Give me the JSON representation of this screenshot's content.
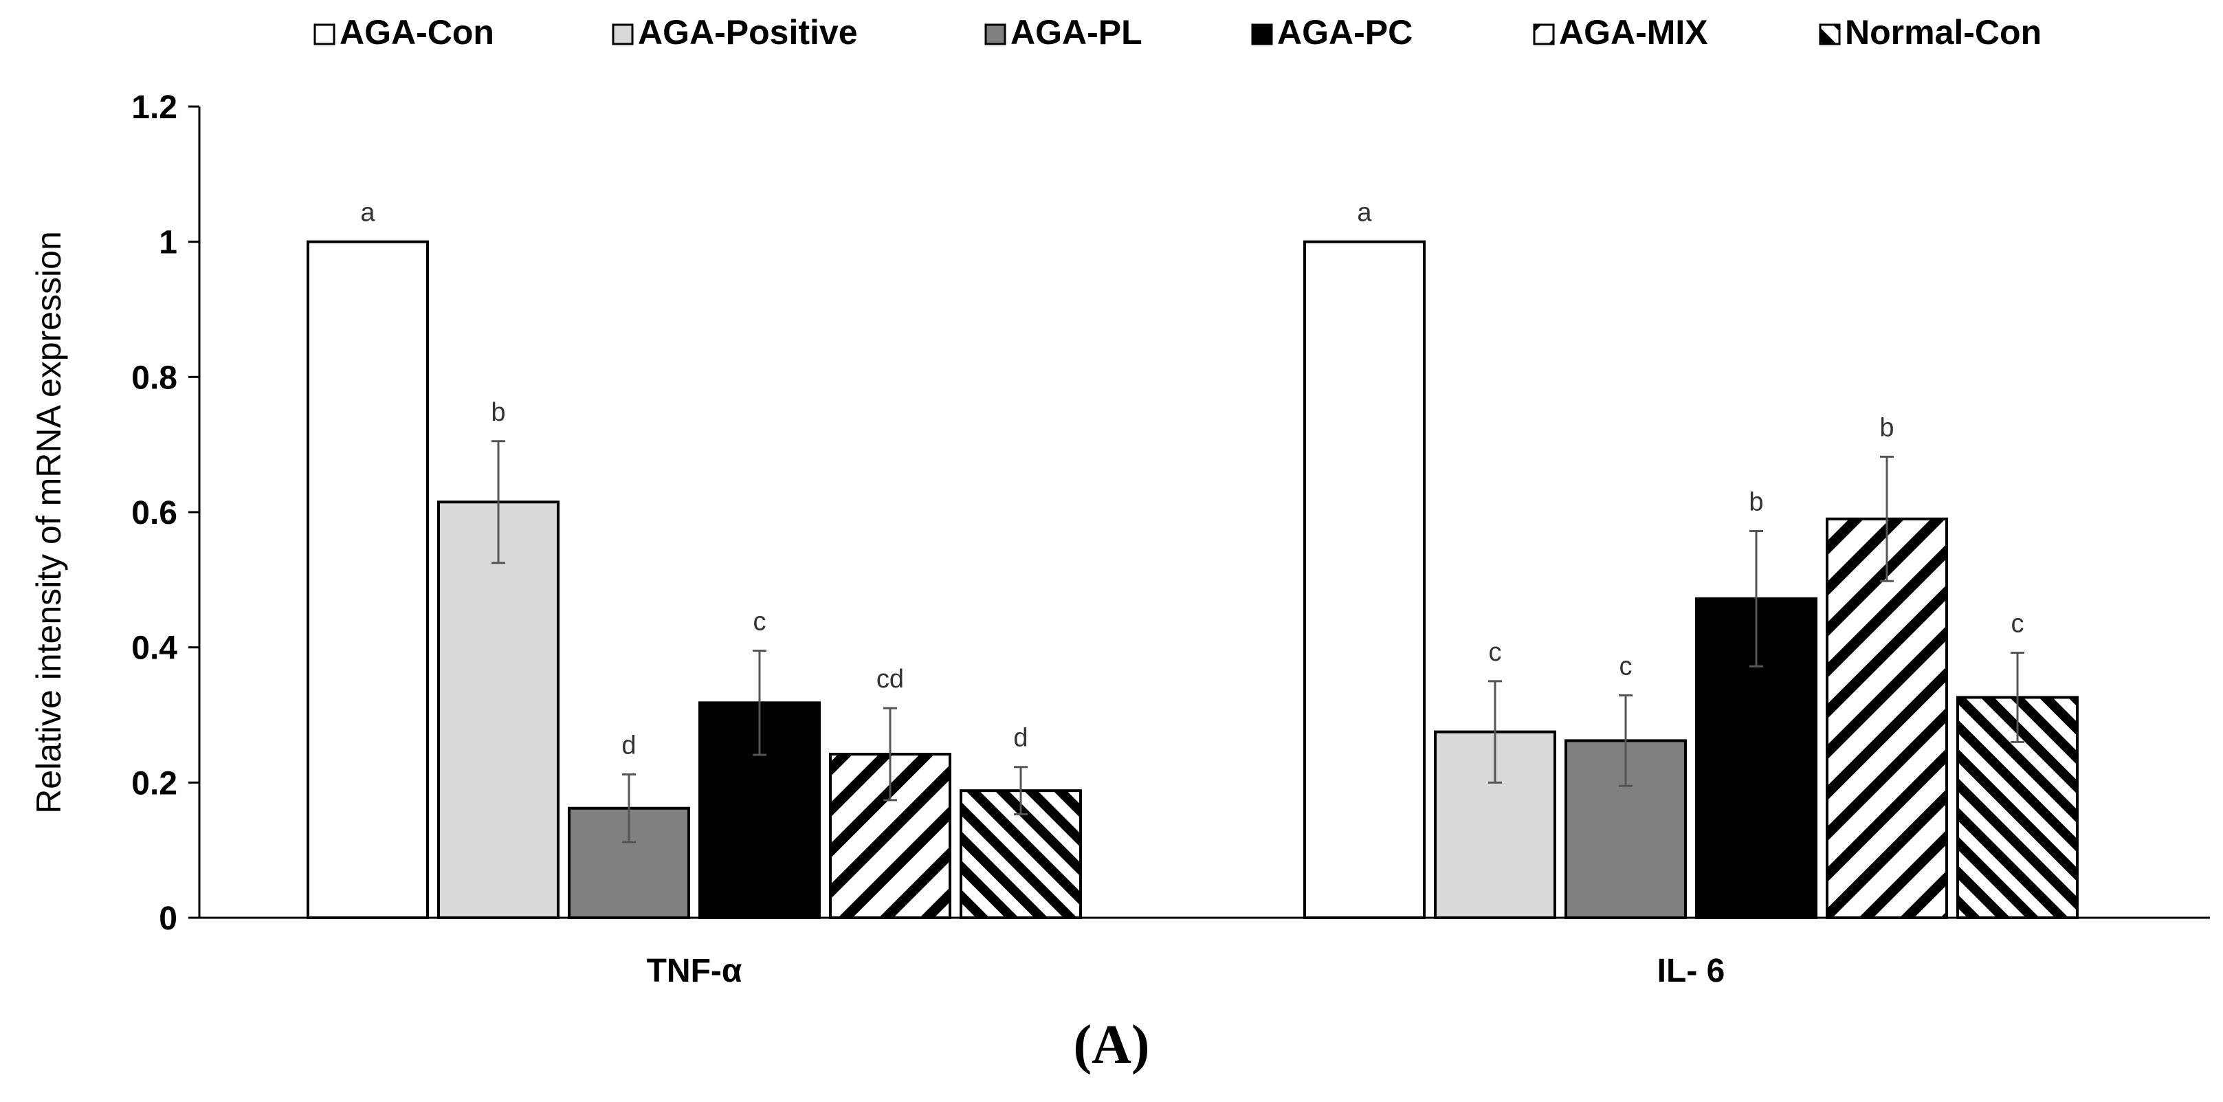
{
  "chart_data": {
    "type": "bar",
    "title": "",
    "xlabel": "",
    "ylabel": "Relative intensity of mRNA expression",
    "ylim": [
      0,
      1.2
    ],
    "yticks": [
      "0",
      "0.2",
      "0.4",
      "0.6",
      "0.8",
      "1",
      "1.2"
    ],
    "grid": false,
    "legend_position": "top",
    "categories": [
      "TNF-α",
      "IL- 6"
    ],
    "series": [
      {
        "name": "AGA-Con",
        "pattern": "white",
        "values": [
          1.0,
          1.0
        ],
        "errors": [
          0.0,
          0.0
        ],
        "sig_labels": [
          "a",
          "a"
        ]
      },
      {
        "name": "AGA-Positive",
        "pattern": "light-gray",
        "values": [
          0.615,
          0.275
        ],
        "errors": [
          0.09,
          0.075
        ],
        "sig_labels": [
          "b",
          "c"
        ]
      },
      {
        "name": "AGA-PL",
        "pattern": "dark-gray",
        "values": [
          0.162,
          0.262
        ],
        "errors": [
          0.05,
          0.067
        ],
        "sig_labels": [
          "d",
          "c"
        ]
      },
      {
        "name": "AGA-PC",
        "pattern": "black",
        "values": [
          0.318,
          0.472
        ],
        "errors": [
          0.077,
          0.1
        ],
        "sig_labels": [
          "c",
          "b"
        ]
      },
      {
        "name": "AGA-MIX",
        "pattern": "wide-diagonal-stripes",
        "values": [
          0.242,
          0.59
        ],
        "errors": [
          0.068,
          0.092
        ],
        "sig_labels": [
          "cd",
          "b"
        ]
      },
      {
        "name": "Normal-Con",
        "pattern": "narrow-diagonal-stripes",
        "values": [
          0.188,
          0.326
        ],
        "errors": [
          0.035,
          0.066
        ],
        "sig_labels": [
          "d",
          "c"
        ]
      }
    ],
    "colors": {
      "axis": "#000000",
      "bar_outline": "#000000",
      "light_gray": "#d9d9d9",
      "dark_gray": "#808080",
      "black": "#000000",
      "error_bar": "#555555"
    }
  },
  "panel_label": "(A)"
}
